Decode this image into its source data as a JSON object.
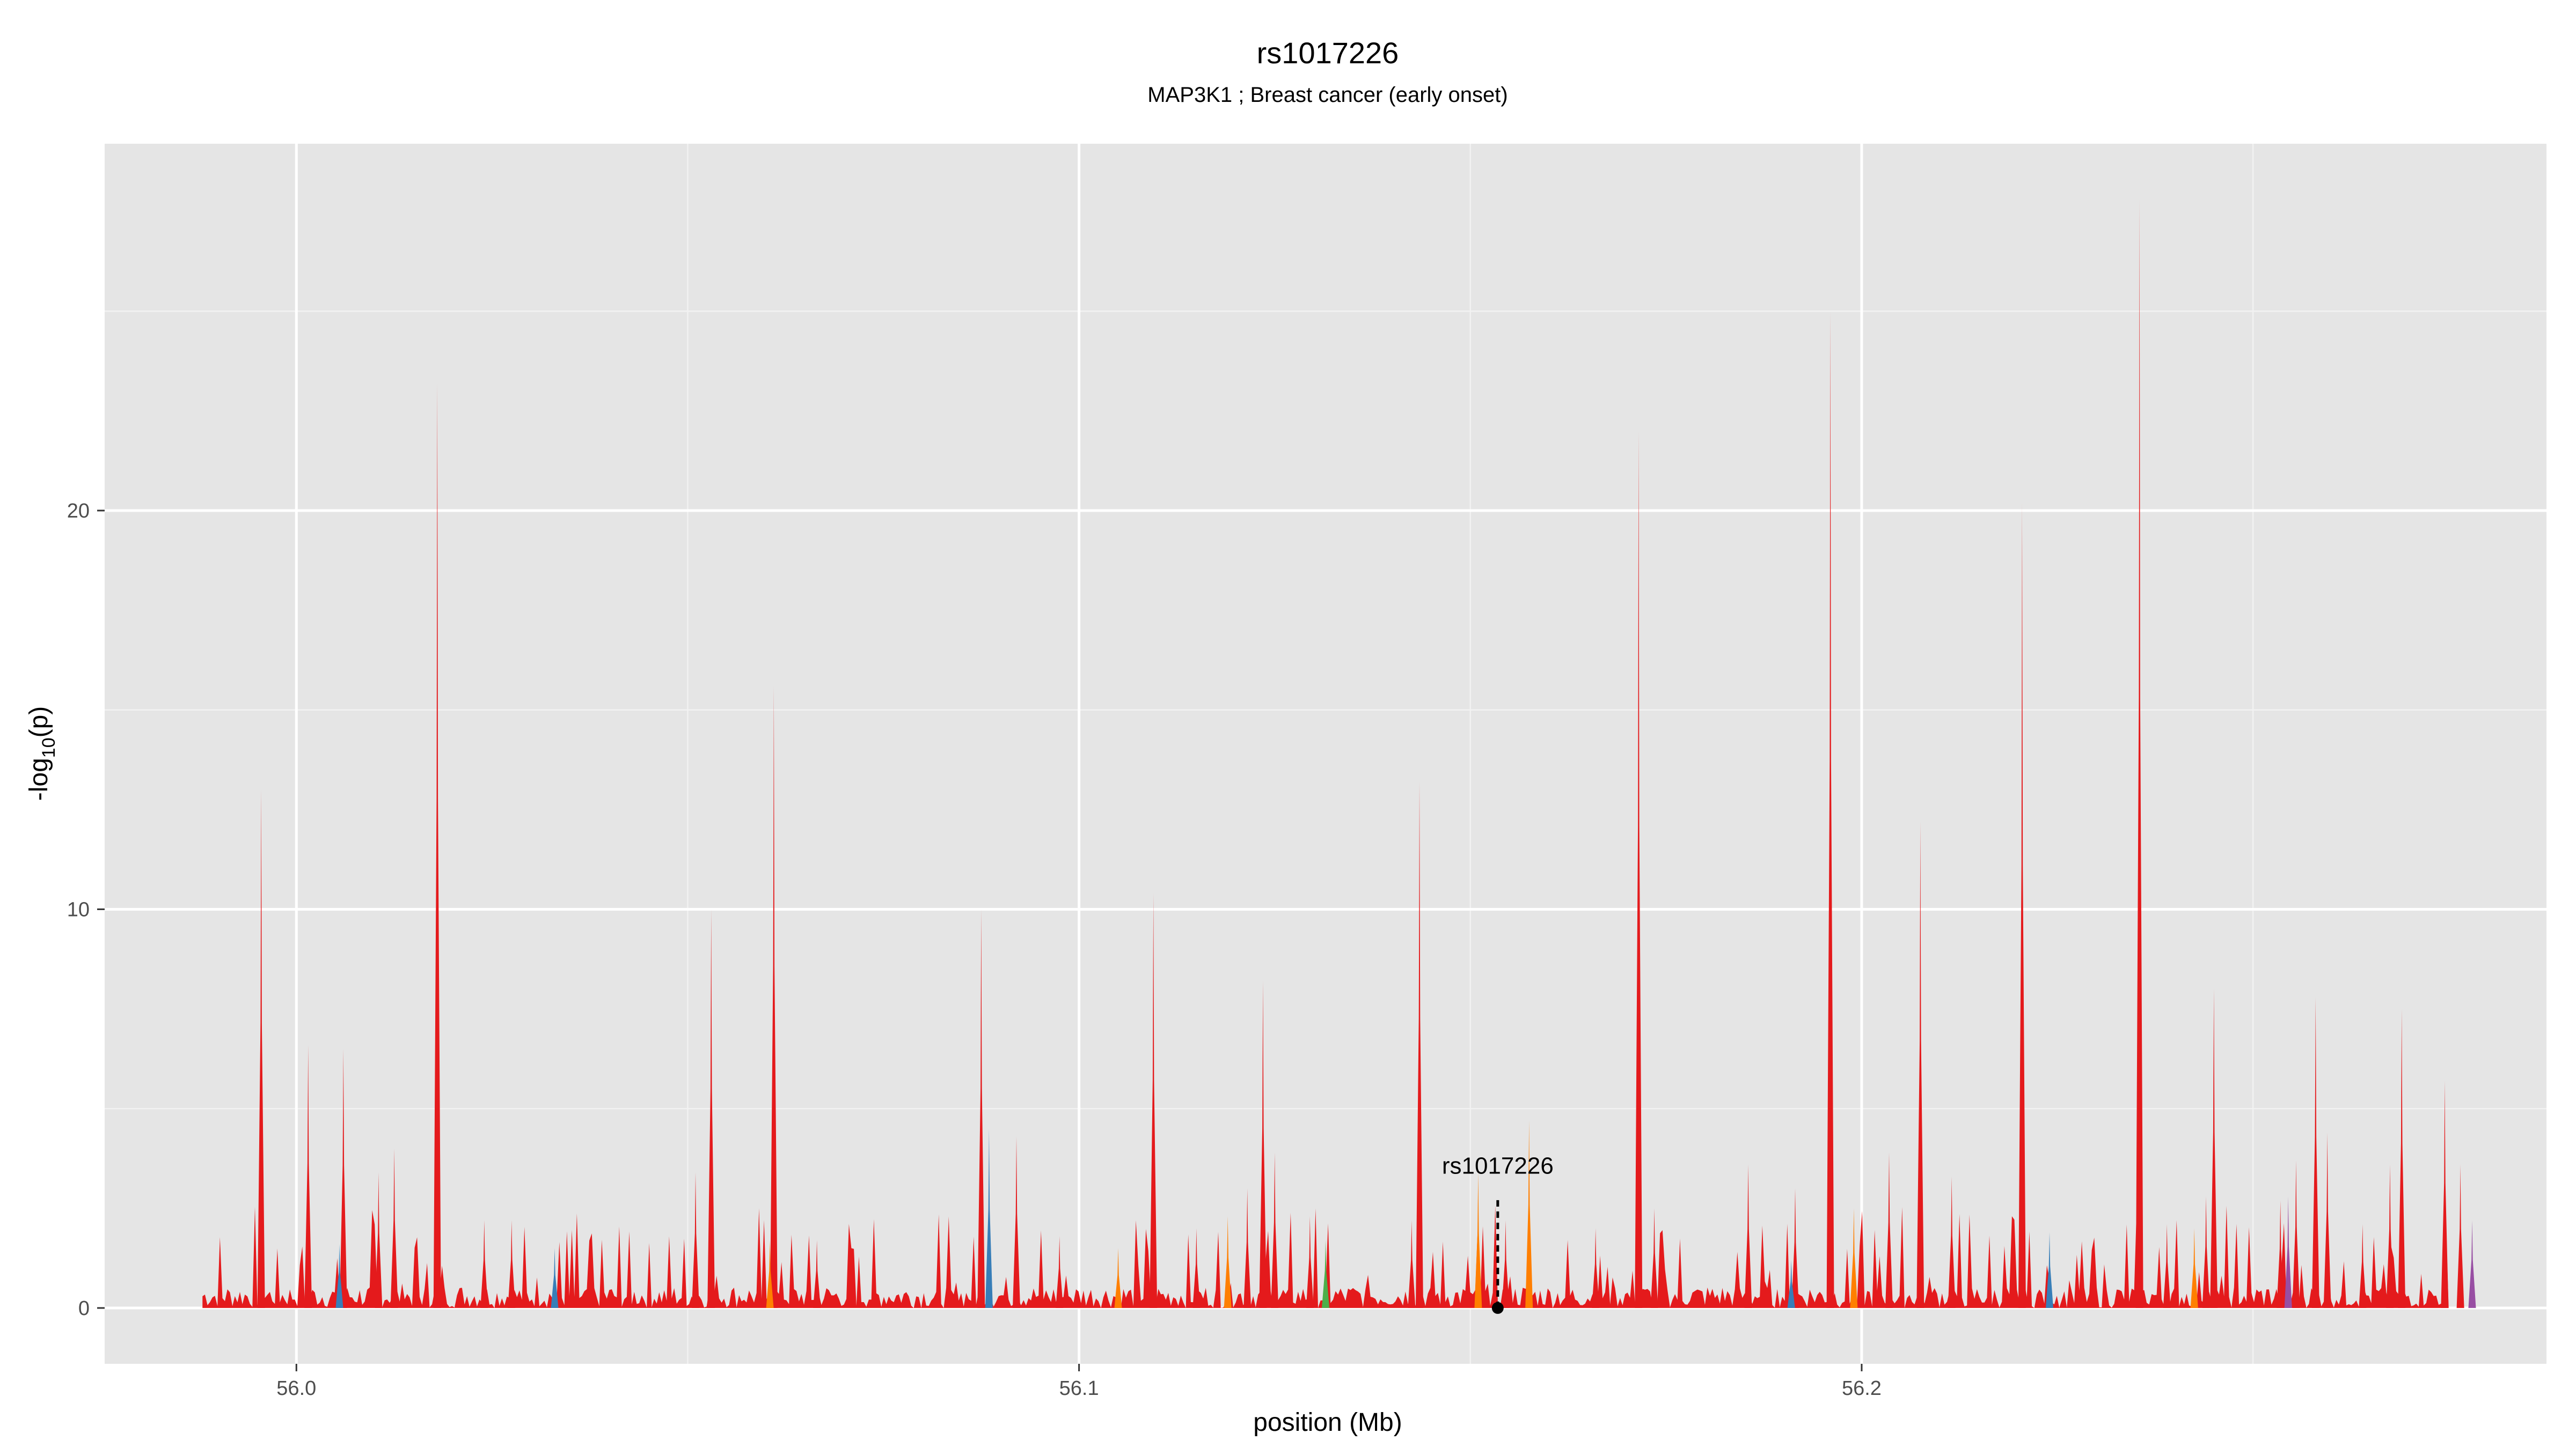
{
  "chart_data": {
    "type": "area",
    "title": "rs1017226",
    "subtitle": "MAP3K1 ; Breast cancer (early onset)",
    "xlabel": "position (Mb)",
    "ylabel_main": "-log",
    "ylabel_sub": "10",
    "ylabel_end": "(p)",
    "xlim": [
      55.9755,
      56.2875
    ],
    "ylim": [
      -1.4,
      29.2
    ],
    "x_ticks": [
      {
        "value": 56.0,
        "label": "56.0"
      },
      {
        "value": 56.1,
        "label": "56.1"
      },
      {
        "value": 56.2,
        "label": "56.2"
      }
    ],
    "y_ticks": [
      {
        "value": 0,
        "label": "0"
      },
      {
        "value": 10,
        "label": "10"
      },
      {
        "value": 20,
        "label": "20"
      }
    ],
    "grid": true,
    "colors": {
      "panel": "#e5e5e5",
      "grid_major": "#ffffff",
      "grid_minor": "#f2f2f2",
      "series_red": "#e41a1c",
      "series_orange": "#ff7f00",
      "series_blue": "#377eb8",
      "series_green": "#4daf4a",
      "series_purple": "#984ea3"
    },
    "series": [
      {
        "color_key": "series_red",
        "points": [
          [
            55.9955,
            13.0
          ],
          [
            56.0015,
            6.6
          ],
          [
            56.006,
            6.5
          ],
          [
            56.0105,
            3.4
          ],
          [
            56.0125,
            4.0
          ],
          [
            56.018,
            23.2
          ],
          [
            56.024,
            2.2
          ],
          [
            56.0275,
            2.2
          ],
          [
            56.051,
            3.4
          ],
          [
            56.053,
            10.0
          ],
          [
            56.061,
            15.6
          ],
          [
            56.0665,
            1.7
          ],
          [
            56.0875,
            10.0
          ],
          [
            56.092,
            4.3
          ],
          [
            56.0975,
            1.8
          ],
          [
            56.1095,
            10.4
          ],
          [
            56.115,
            2.0
          ],
          [
            56.1215,
            3.0
          ],
          [
            56.1235,
            8.2
          ],
          [
            56.125,
            3.9
          ],
          [
            56.1295,
            2.3
          ],
          [
            56.1425,
            2.2
          ],
          [
            56.1435,
            13.2
          ],
          [
            56.1545,
            2.2
          ],
          [
            56.166,
            2.0
          ],
          [
            56.1715,
            22.0
          ],
          [
            56.1735,
            2.5
          ],
          [
            56.1855,
            3.6
          ],
          [
            56.1915,
            3.0
          ],
          [
            56.196,
            25.0
          ],
          [
            56.2035,
            3.9
          ],
          [
            56.2075,
            12.2
          ],
          [
            56.2115,
            3.3
          ],
          [
            56.2205,
            20.2
          ],
          [
            56.2355,
            27.8
          ],
          [
            56.239,
            2.1
          ],
          [
            56.244,
            2.8
          ],
          [
            56.245,
            8.0
          ],
          [
            56.2555,
            3.7
          ],
          [
            56.2535,
            2.7
          ],
          [
            56.258,
            7.8
          ],
          [
            56.2595,
            4.4
          ],
          [
            56.264,
            2.1
          ],
          [
            56.2675,
            3.6
          ],
          [
            56.269,
            7.5
          ],
          [
            56.2745,
            5.7
          ],
          [
            56.2765,
            3.6
          ]
        ]
      },
      {
        "color_key": "series_orange",
        "points": [
          [
            56.0605,
            1.7
          ],
          [
            56.105,
            1.5
          ],
          [
            56.119,
            2.3
          ],
          [
            56.151,
            3.4
          ],
          [
            56.1575,
            4.7
          ],
          [
            56.2425,
            2.0
          ],
          [
            56.199,
            2.5
          ]
        ]
      },
      {
        "color_key": "series_blue",
        "points": [
          [
            56.0055,
            1.6
          ],
          [
            56.033,
            1.5
          ],
          [
            56.0885,
            4.5
          ],
          [
            56.224,
            1.9
          ],
          [
            56.191,
            1.2
          ]
        ]
      },
      {
        "color_key": "series_green",
        "points": [
          [
            56.1315,
            1.7
          ]
        ]
      },
      {
        "color_key": "series_purple",
        "points": [
          [
            56.2545,
            2.8
          ],
          [
            56.278,
            2.2
          ]
        ]
      }
    ],
    "background": {
      "x_start": 55.988,
      "x_end": 56.275,
      "max_height": 2.6
    },
    "highlight": {
      "label": "rs1017226",
      "x": 56.1535,
      "y": 0.0,
      "line_top": 2.8
    }
  }
}
